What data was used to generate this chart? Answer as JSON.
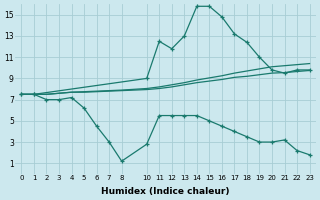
{
  "xlabel": "Humidex (Indice chaleur)",
  "background_color": "#cce8ee",
  "grid_color": "#a8cdd4",
  "line_color": "#1a7a6e",
  "xlim": [
    -0.5,
    23.5
  ],
  "ylim": [
    0,
    16
  ],
  "xticks": [
    0,
    1,
    2,
    3,
    4,
    5,
    6,
    7,
    8,
    10,
    11,
    12,
    13,
    14,
    15,
    16,
    17,
    18,
    19,
    20,
    21,
    22,
    23
  ],
  "yticks": [
    1,
    3,
    5,
    7,
    9,
    11,
    13,
    15
  ],
  "line_upper_x": [
    0,
    1,
    10,
    11,
    12,
    13,
    14,
    15,
    16,
    17,
    18,
    19,
    20,
    21,
    22,
    23
  ],
  "line_upper_y": [
    7.5,
    7.5,
    9.0,
    12.5,
    11.8,
    13.0,
    15.8,
    15.8,
    14.8,
    13.2,
    12.4,
    11.0,
    9.8,
    9.5,
    9.8,
    9.8
  ],
  "line_lower_x": [
    0,
    1,
    2,
    3,
    4,
    5,
    6,
    7,
    8,
    10,
    11,
    12,
    13,
    14,
    15,
    16,
    17,
    18,
    19,
    20,
    21,
    22,
    23
  ],
  "line_lower_y": [
    7.5,
    7.5,
    7.0,
    7.0,
    7.2,
    6.2,
    4.5,
    3.0,
    1.2,
    2.8,
    5.5,
    5.5,
    5.5,
    5.5,
    5.0,
    4.5,
    4.0,
    3.5,
    3.0,
    3.0,
    3.2,
    2.2,
    1.8
  ],
  "line_straight1_x": [
    0,
    1,
    2,
    3,
    4,
    5,
    6,
    7,
    8,
    10,
    11,
    12,
    13,
    14,
    15,
    16,
    17,
    18,
    19,
    20,
    21,
    22,
    23
  ],
  "line_straight1_y": [
    7.5,
    7.5,
    7.5,
    7.6,
    7.7,
    7.7,
    7.75,
    7.8,
    7.85,
    7.95,
    8.05,
    8.2,
    8.4,
    8.6,
    8.75,
    8.9,
    9.1,
    9.2,
    9.35,
    9.5,
    9.55,
    9.65,
    9.75
  ],
  "line_straight2_x": [
    0,
    1,
    2,
    3,
    4,
    5,
    6,
    7,
    8,
    10,
    11,
    12,
    13,
    14,
    15,
    16,
    17,
    18,
    19,
    20,
    21,
    22,
    23
  ],
  "line_straight2_y": [
    7.5,
    7.5,
    7.5,
    7.6,
    7.7,
    7.75,
    7.8,
    7.85,
    7.9,
    8.05,
    8.2,
    8.4,
    8.6,
    8.85,
    9.05,
    9.25,
    9.5,
    9.7,
    9.9,
    10.1,
    10.2,
    10.3,
    10.4
  ]
}
